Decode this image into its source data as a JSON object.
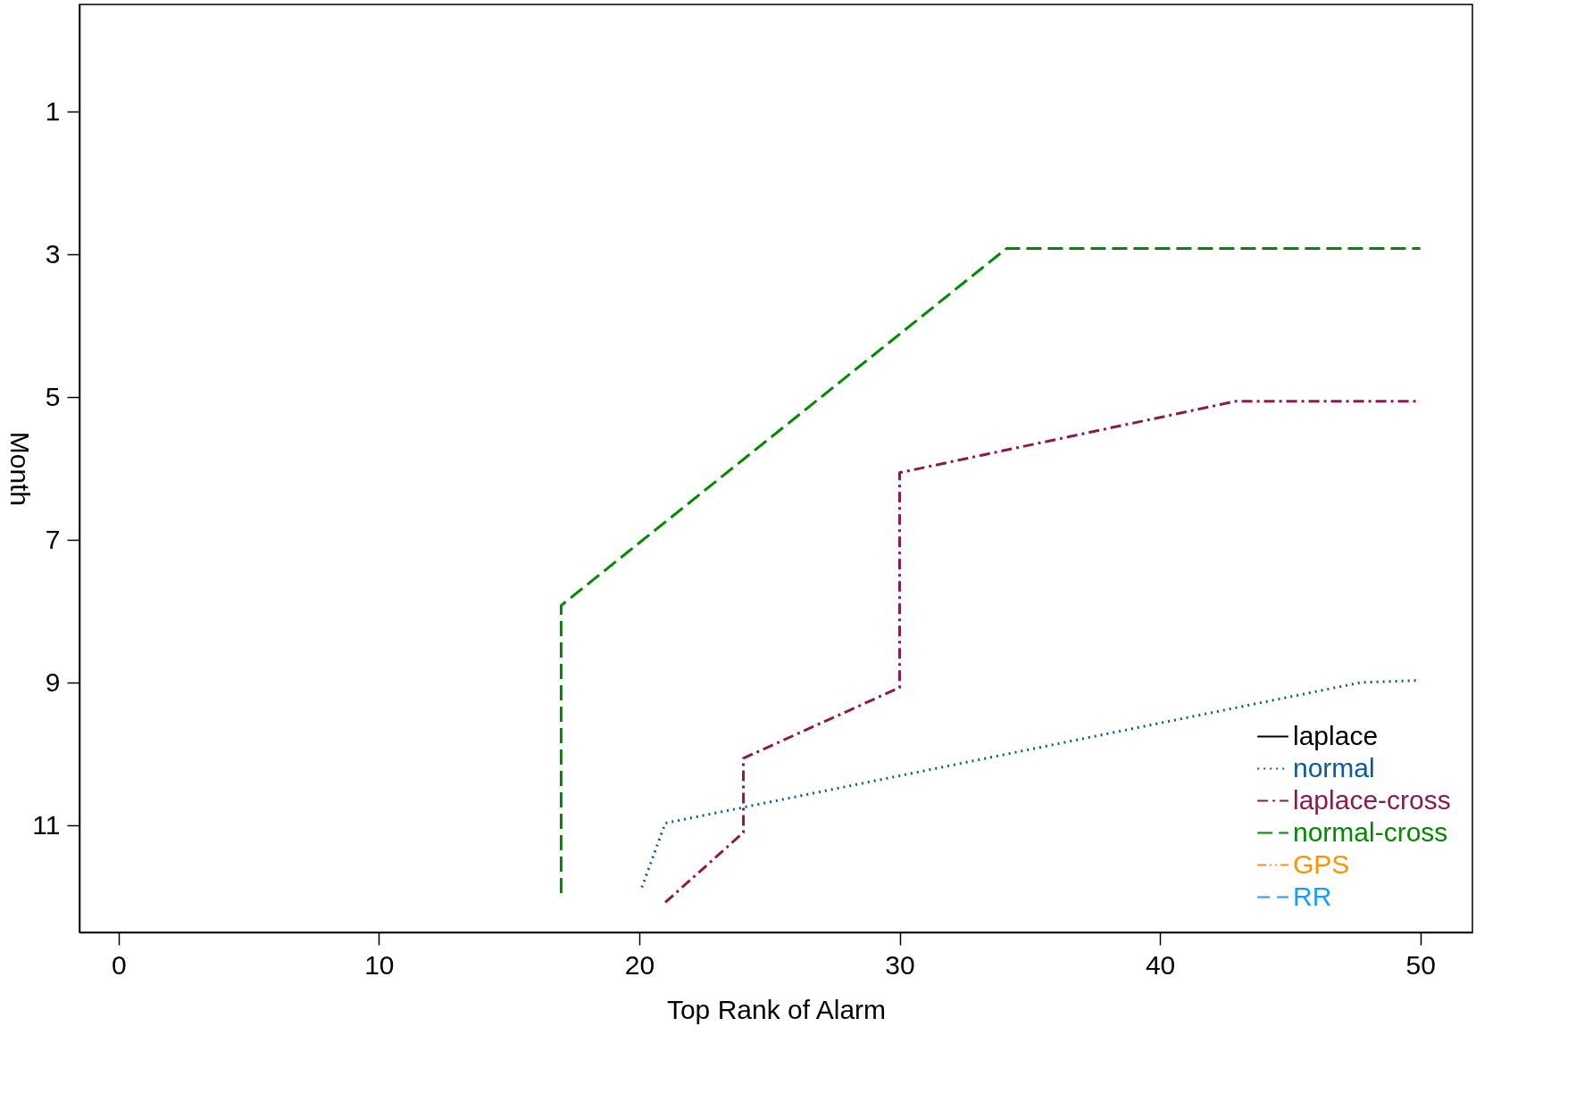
{
  "chart_data": {
    "type": "line",
    "xlabel": "Top Rank of Alarm",
    "ylabel": "Month",
    "xlim": [
      -1.5,
      52
    ],
    "ylim": [
      12.5,
      -0.5
    ],
    "xticks": [
      0,
      10,
      20,
      30,
      40,
      50
    ],
    "yticks": [
      1,
      3,
      5,
      7,
      9,
      11
    ],
    "grid": false,
    "legend": "bottom right",
    "series": [
      {
        "name": "laplace",
        "color": "#000000",
        "line_style": "solid"
      },
      {
        "name": "normal",
        "color": "#0a5a9c",
        "line_style": "dotted",
        "x": [
          20.1,
          21,
          47.7,
          50
        ],
        "values": [
          11.87,
          10.97,
          9.0,
          8.97
        ]
      },
      {
        "name": "laplace-cross",
        "color": "#8b1a4f",
        "line_style": "dashdot",
        "x": [
          21,
          24,
          24,
          30,
          30,
          42.9,
          50
        ],
        "values": [
          12.08,
          11.1,
          10.06,
          9.07,
          6.06,
          5.06,
          5.06
        ]
      },
      {
        "name": "normal-cross",
        "color": "#008a00",
        "line_style": "dashed",
        "x": [
          17,
          17,
          34.1,
          50
        ],
        "values": [
          11.95,
          7.92,
          2.92,
          2.92
        ]
      },
      {
        "name": "GPS",
        "color": "#ff9000",
        "line_style": "dashdotdot"
      },
      {
        "name": "RR",
        "color": "#1e9bff",
        "line_style": "longdash"
      }
    ]
  }
}
